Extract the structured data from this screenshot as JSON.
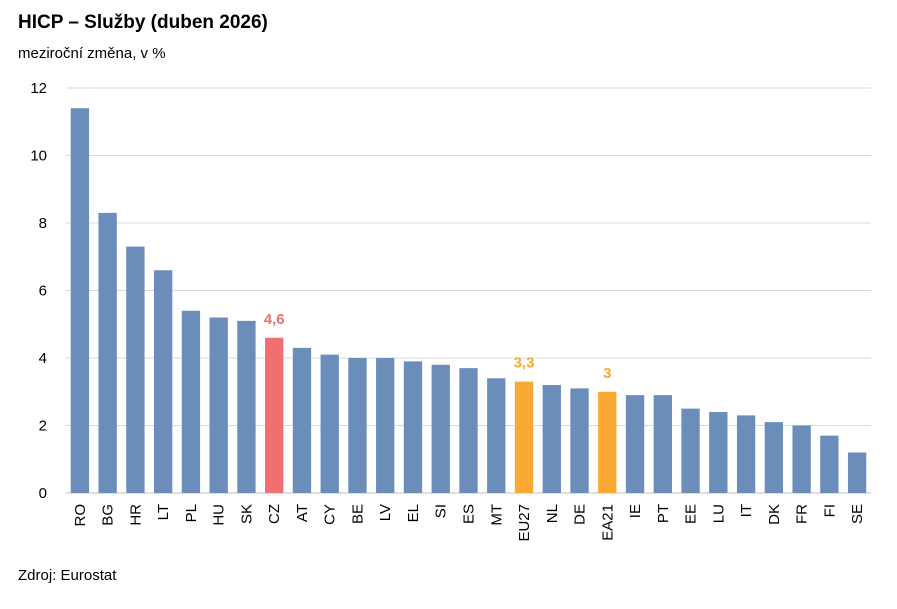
{
  "title": "HICP – Služby (duben 2026)",
  "subtitle": "meziroční změna, v %",
  "source": "Zdroj: Eurostat",
  "chart_data": {
    "type": "bar",
    "title": "HICP – Služby (duben 2026)",
    "subtitle": "meziroční změna, v %",
    "xlabel": "",
    "ylabel": "",
    "ylim": [
      0,
      12
    ],
    "yticks": [
      0,
      2,
      4,
      6,
      8,
      10,
      12
    ],
    "grid": true,
    "legend": "none",
    "categories": [
      "RO",
      "BG",
      "HR",
      "LT",
      "PL",
      "HU",
      "SK",
      "CZ",
      "AT",
      "CY",
      "BE",
      "LV",
      "EL",
      "SI",
      "ES",
      "MT",
      "EU27",
      "NL",
      "DE",
      "EA21",
      "IE",
      "PT",
      "EE",
      "LU",
      "IT",
      "DK",
      "FR",
      "FI",
      "SE"
    ],
    "values": [
      11.4,
      8.3,
      7.3,
      6.6,
      5.4,
      5.2,
      5.1,
      4.6,
      4.3,
      4.1,
      4.0,
      4.0,
      3.9,
      3.8,
      3.7,
      3.4,
      3.3,
      3.2,
      3.1,
      3.0,
      2.9,
      2.9,
      2.5,
      2.4,
      2.3,
      2.1,
      2.0,
      1.7,
      1.2
    ],
    "colors": {
      "default": "#6a8dba",
      "CZ": "#f07070",
      "EU27": "#f9a834",
      "EA21": "#f9a834"
    },
    "data_labels": [
      {
        "category": "CZ",
        "text": "4,6",
        "color": "#e87070"
      },
      {
        "category": "EU27",
        "text": "3,3",
        "color": "#f9a834"
      },
      {
        "category": "EA21",
        "text": "3",
        "color": "#f9a834"
      }
    ]
  }
}
